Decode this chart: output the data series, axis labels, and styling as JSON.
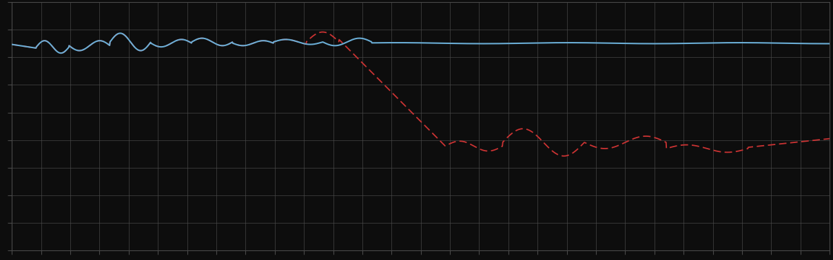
{
  "background_color": "#0d0d0d",
  "plot_bg_color": "#0d0d0d",
  "grid_color": "#4a4a4a",
  "line1_color": "#6baed6",
  "line2_color": "#cc3333",
  "figsize": [
    12.09,
    3.78
  ],
  "dpi": 100,
  "xlim": [
    0,
    100
  ],
  "ylim": [
    0,
    10
  ],
  "n_xgrid": 28,
  "n_ygrid": 9
}
